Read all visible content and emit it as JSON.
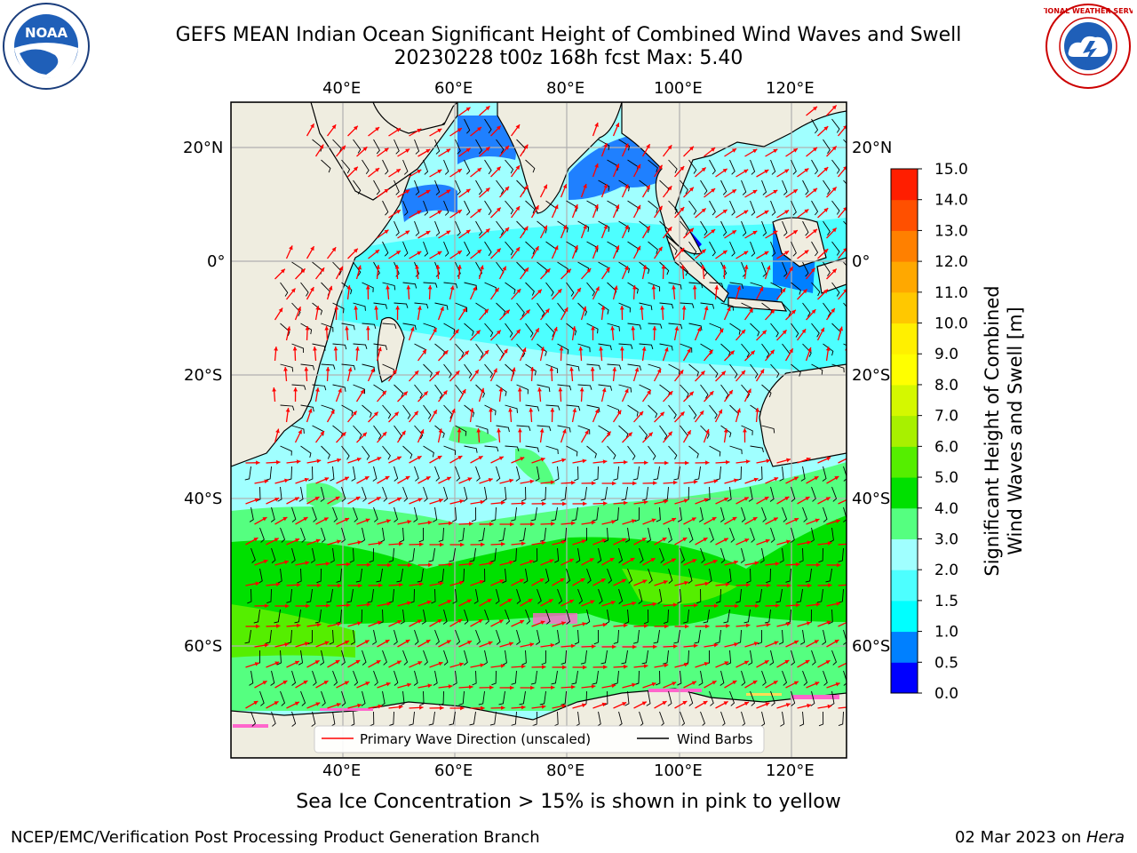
{
  "header": {
    "title_line1": "GEFS MEAN Indian Ocean Significant Height of Combined Wind Waves and Swell",
    "title_line2": "20230228 t00z 168h fcst   Max: 5.40",
    "left_logo_text": "NOAA",
    "right_logo_text": "NATIONAL WEATHER SERVICE"
  },
  "map": {
    "top_lon_labels": [
      "40°E",
      "60°E",
      "80°E",
      "100°E",
      "120°E"
    ],
    "bottom_lon_labels": [
      "40°E",
      "60°E",
      "80°E",
      "100°E",
      "120°E"
    ],
    "left_lat_labels": [
      "20°N",
      "0°",
      "20°S",
      "40°S",
      "60°S"
    ],
    "right_lat_labels": [
      "20°N",
      "0°",
      "20°S",
      "40°S",
      "60°S"
    ],
    "legend": {
      "wave_direction": "Primary Wave Direction (unscaled)",
      "wind_barbs": "Wind Barbs"
    },
    "colors": {
      "land": "#efede0",
      "wave_arrow": "#ff0000",
      "barb": "#000000",
      "grid": "#b0b0b0"
    }
  },
  "colorbar": {
    "label_line1": "Significant Height of Combined",
    "label_line2": "Wind Waves and Swell [m]",
    "ticks": [
      "0.0",
      "0.5",
      "1.0",
      "1.5",
      "2.0",
      "3.0",
      "4.0",
      "5.0",
      "6.0",
      "7.0",
      "8.0",
      "9.0",
      "10.0",
      "11.0",
      "12.0",
      "13.0",
      "14.0",
      "15.0"
    ],
    "colors": [
      "#0000ff",
      "#0080ff",
      "#00ffff",
      "#4dffff",
      "#a0ffff",
      "#55ff80",
      "#00e000",
      "#55ee00",
      "#a8f000",
      "#d4f800",
      "#ffff00",
      "#fff000",
      "#ffc800",
      "#ffa800",
      "#ff8000",
      "#ff5000",
      "#ff1e00"
    ]
  },
  "footer": {
    "note": "Sea Ice Concentration > 15% is shown in pink to yellow",
    "left": "NCEP/EMC/Verification Post Processing Product Generation Branch",
    "right_prefix": "02 Mar 2023 on ",
    "right_host": "Hera"
  }
}
